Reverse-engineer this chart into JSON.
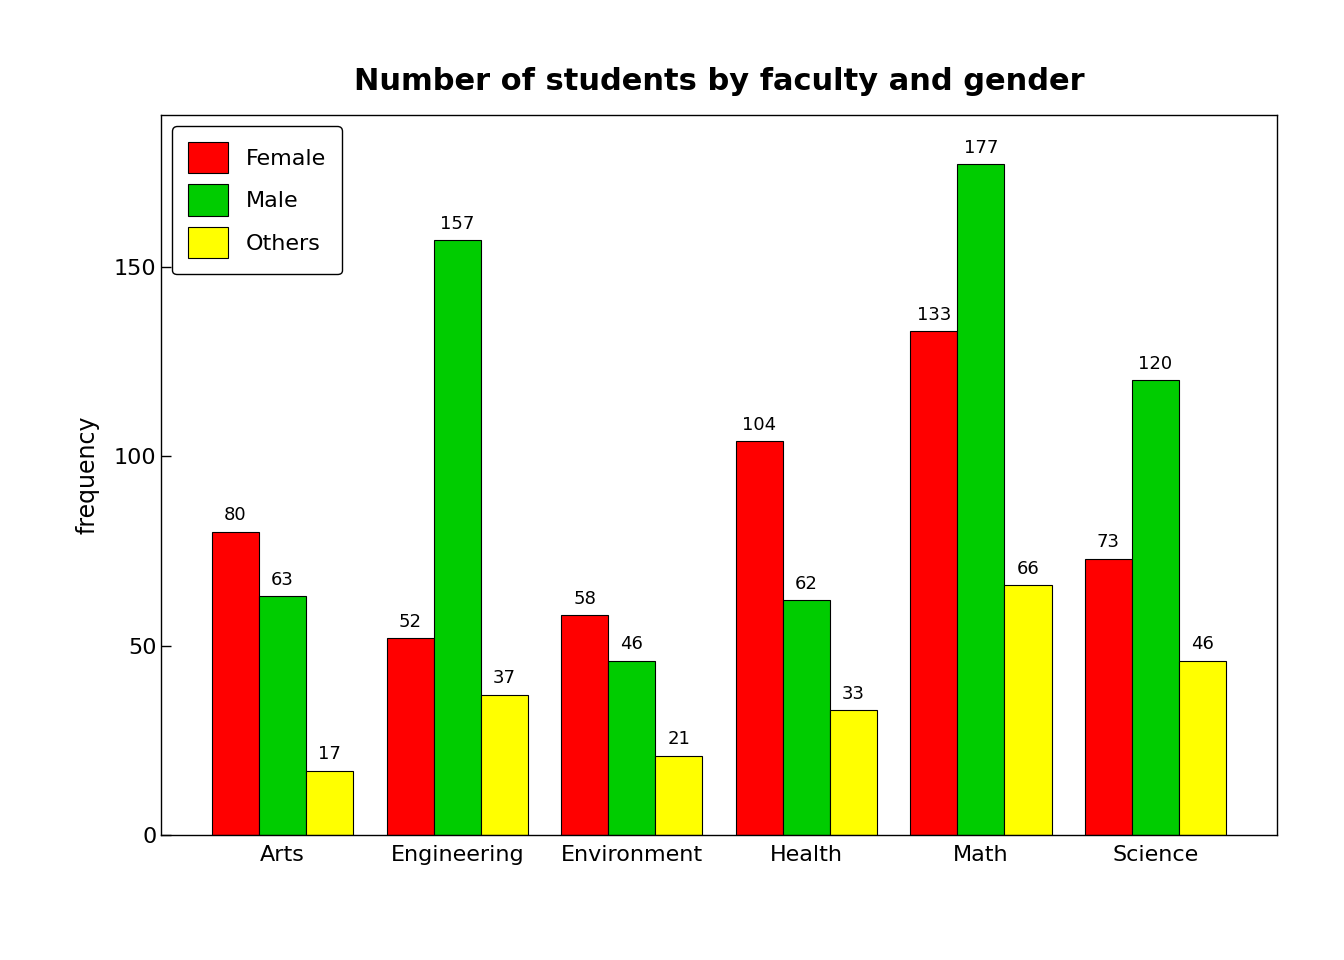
{
  "title": "Number of students by faculty and gender",
  "categories": [
    "Arts",
    "Engineering",
    "Environment",
    "Health",
    "Math",
    "Science"
  ],
  "series": {
    "Female": [
      80,
      52,
      58,
      104,
      133,
      73
    ],
    "Male": [
      63,
      157,
      46,
      62,
      177,
      120
    ],
    "Others": [
      17,
      37,
      21,
      33,
      66,
      46
    ]
  },
  "colors": {
    "Female": "#FF0000",
    "Male": "#00CC00",
    "Others": "#FFFF00"
  },
  "ylabel": "frequency",
  "ylim": [
    0,
    190
  ],
  "yticks": [
    0,
    50,
    100,
    150
  ],
  "legend_labels": [
    "Female",
    "Male",
    "Others"
  ],
  "bar_width": 0.27,
  "title_fontsize": 22,
  "axis_fontsize": 17,
  "tick_fontsize": 16,
  "label_fontsize": 13,
  "background_color": "#FFFFFF",
  "legend_loc": "upper left",
  "legend_fontsize": 16
}
